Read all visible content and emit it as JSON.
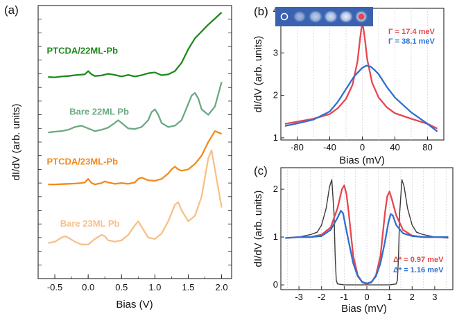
{
  "chart_data": [
    {
      "type": "line",
      "panel": "(a)",
      "xlabel": "Bias (V)",
      "ylabel": "dI/dV (arb. units)",
      "xlim": [
        -0.75,
        2.15
      ],
      "ylim": [
        0,
        1
      ],
      "xticks": [
        "-0.5",
        "0.0",
        "0.5",
        "1.0",
        "1.5",
        "2.0"
      ],
      "xtick_values": [
        -0.5,
        0.0,
        0.5,
        1.0,
        1.5,
        2.0
      ],
      "series": [
        {
          "name": "PTCDA/22ML-Pb",
          "color": "#1e8a1e",
          "label_x": -0.62,
          "label_y": 0.823,
          "x": [
            -0.6,
            -0.5,
            -0.4,
            -0.3,
            -0.2,
            -0.1,
            -0.05,
            0.0,
            0.05,
            0.1,
            0.2,
            0.3,
            0.4,
            0.5,
            0.6,
            0.7,
            0.8,
            0.9,
            1.0,
            1.1,
            1.2,
            1.3,
            1.4,
            1.5,
            1.6,
            1.7,
            1.8,
            1.9,
            2.0
          ],
          "y": [
            0.738,
            0.737,
            0.74,
            0.742,
            0.745,
            0.747,
            0.748,
            0.76,
            0.748,
            0.742,
            0.744,
            0.75,
            0.746,
            0.74,
            0.746,
            0.74,
            0.745,
            0.752,
            0.755,
            0.745,
            0.748,
            0.76,
            0.79,
            0.84,
            0.88,
            0.905,
            0.93,
            0.952,
            0.975
          ]
        },
        {
          "name": "Bare 22ML Pb",
          "color": "#6aa982",
          "label_x": -0.28,
          "label_y": 0.6,
          "x": [
            -0.6,
            -0.5,
            -0.4,
            -0.3,
            -0.2,
            -0.1,
            0.0,
            0.1,
            0.2,
            0.3,
            0.4,
            0.45,
            0.5,
            0.6,
            0.7,
            0.8,
            0.9,
            0.95,
            1.0,
            1.05,
            1.1,
            1.2,
            1.3,
            1.4,
            1.5,
            1.55,
            1.6,
            1.65,
            1.7,
            1.8,
            1.9,
            2.0
          ],
          "y": [
            0.535,
            0.538,
            0.54,
            0.545,
            0.555,
            0.56,
            0.55,
            0.54,
            0.545,
            0.553,
            0.57,
            0.58,
            0.57,
            0.55,
            0.548,
            0.555,
            0.58,
            0.61,
            0.62,
            0.6,
            0.57,
            0.555,
            0.56,
            0.58,
            0.64,
            0.67,
            0.68,
            0.66,
            0.62,
            0.6,
            0.63,
            0.72
          ]
        },
        {
          "name": "PTCDA/23ML-Pb",
          "color": "#f28a1c",
          "label_x": -0.62,
          "label_y": 0.418,
          "x": [
            -0.6,
            -0.5,
            -0.4,
            -0.3,
            -0.2,
            -0.1,
            -0.05,
            0.0,
            0.05,
            0.1,
            0.2,
            0.25,
            0.3,
            0.4,
            0.5,
            0.6,
            0.7,
            0.75,
            0.8,
            0.9,
            1.0,
            1.1,
            1.2,
            1.25,
            1.3,
            1.35,
            1.4,
            1.5,
            1.6,
            1.7,
            1.8,
            1.9,
            2.0
          ],
          "y": [
            0.345,
            0.345,
            0.346,
            0.347,
            0.348,
            0.35,
            0.352,
            0.365,
            0.35,
            0.345,
            0.35,
            0.356,
            0.352,
            0.347,
            0.35,
            0.347,
            0.352,
            0.365,
            0.37,
            0.36,
            0.358,
            0.365,
            0.385,
            0.4,
            0.41,
            0.4,
            0.395,
            0.4,
            0.42,
            0.45,
            0.5,
            0.54,
            0.53
          ]
        },
        {
          "name": "Bare 23ML Pb",
          "color": "#f7c088",
          "label_x": -0.42,
          "label_y": 0.19,
          "x": [
            -0.6,
            -0.5,
            -0.4,
            -0.35,
            -0.3,
            -0.2,
            -0.1,
            0.0,
            0.1,
            0.2,
            0.25,
            0.3,
            0.4,
            0.5,
            0.6,
            0.7,
            0.75,
            0.8,
            0.9,
            1.0,
            1.1,
            1.2,
            1.3,
            1.35,
            1.4,
            1.5,
            1.6,
            1.7,
            1.8,
            1.85,
            1.9,
            2.0
          ],
          "y": [
            0.13,
            0.135,
            0.15,
            0.155,
            0.15,
            0.135,
            0.125,
            0.125,
            0.145,
            0.16,
            0.155,
            0.14,
            0.135,
            0.14,
            0.16,
            0.195,
            0.21,
            0.19,
            0.15,
            0.145,
            0.165,
            0.21,
            0.27,
            0.28,
            0.25,
            0.21,
            0.23,
            0.3,
            0.44,
            0.47,
            0.4,
            0.26
          ]
        }
      ]
    },
    {
      "type": "line",
      "panel": "(b)",
      "xlabel": "Bias (mV)",
      "ylabel": "dI/dV (arb. units)",
      "xlim": [
        -100,
        100
      ],
      "ylim": [
        0.95,
        4.05
      ],
      "xticks": [
        -80,
        -40,
        0,
        40,
        80
      ],
      "yticks": [
        1,
        2,
        3,
        4
      ],
      "series": [
        {
          "name": "red",
          "color": "#e8454f",
          "x": [
            -95,
            -80,
            -60,
            -40,
            -30,
            -20,
            -12,
            -6,
            -3,
            0,
            3,
            6,
            12,
            20,
            30,
            40,
            60,
            80,
            92
          ],
          "y": [
            1.33,
            1.38,
            1.45,
            1.56,
            1.7,
            1.92,
            2.25,
            2.8,
            3.3,
            3.75,
            3.35,
            2.85,
            2.3,
            1.95,
            1.72,
            1.58,
            1.45,
            1.33,
            1.22
          ]
        },
        {
          "name": "blue",
          "color": "#2f6fd0",
          "x": [
            -95,
            -80,
            -60,
            -40,
            -30,
            -20,
            -10,
            0,
            5,
            10,
            15,
            20,
            30,
            40,
            60,
            80,
            92
          ],
          "y": [
            1.28,
            1.34,
            1.43,
            1.62,
            1.85,
            2.15,
            2.45,
            2.65,
            2.7,
            2.68,
            2.6,
            2.5,
            2.2,
            1.95,
            1.6,
            1.33,
            1.15
          ]
        }
      ],
      "annotations": [
        {
          "text": "Γ = 17.4 meV",
          "color": "#e8454f"
        },
        {
          "text": "Γ = 38.1 meV",
          "color": "#2f6fd0"
        }
      ],
      "inset": {
        "description": "image",
        "dots": [
          {
            "color": "#ffffff",
            "kind": "open"
          },
          {
            "color": "#e8454f",
            "kind": "filled"
          }
        ]
      }
    },
    {
      "type": "line",
      "panel": "(c)",
      "xlabel": "Bias (mV)",
      "ylabel": "dI/dV (arb. units)",
      "xlim": [
        -3.8,
        3.8
      ],
      "ylim": [
        -0.1,
        2.45
      ],
      "xticks": [
        -3,
        -2,
        -1,
        0,
        1,
        2,
        3
      ],
      "yticks": [
        0,
        1,
        2
      ],
      "series": [
        {
          "name": "gray",
          "color": "#3a3a3a",
          "x": [
            -3.6,
            -3.0,
            -2.5,
            -2.2,
            -2.0,
            -1.8,
            -1.65,
            -1.55,
            -1.45,
            -1.4,
            -1.35,
            -1.3,
            -1.0,
            0,
            1.0,
            1.3,
            1.35,
            1.4,
            1.45,
            1.55,
            1.65,
            1.8,
            2.0,
            2.2,
            2.5,
            3.0,
            3.6
          ],
          "y": [
            0.98,
            1.0,
            1.05,
            1.1,
            1.25,
            1.6,
            2.05,
            2.2,
            1.5,
            0.6,
            0.1,
            0.02,
            0.0,
            0.0,
            0.0,
            0.02,
            0.1,
            0.6,
            1.5,
            2.2,
            2.05,
            1.6,
            1.25,
            1.1,
            1.05,
            1.0,
            0.98
          ]
        },
        {
          "name": "red",
          "color": "#e8454f",
          "x": [
            -3.6,
            -3.0,
            -2.5,
            -2.0,
            -1.6,
            -1.3,
            -1.1,
            -1.0,
            -0.9,
            -0.8,
            -0.6,
            -0.4,
            -0.2,
            0,
            0.2,
            0.4,
            0.6,
            0.8,
            0.9,
            1.0,
            1.1,
            1.3,
            1.6,
            2.0,
            2.5,
            3.0,
            3.6
          ],
          "y": [
            0.98,
            1.0,
            1.0,
            1.05,
            1.2,
            1.6,
            2.0,
            2.08,
            1.9,
            1.5,
            0.6,
            0.2,
            0.05,
            0.02,
            0.05,
            0.2,
            0.6,
            1.5,
            1.85,
            1.95,
            1.8,
            1.45,
            1.15,
            1.03,
            1.0,
            1.0,
            1.0
          ]
        },
        {
          "name": "blue",
          "color": "#2f6fd0",
          "x": [
            -3.6,
            -3.0,
            -2.5,
            -2.0,
            -1.6,
            -1.3,
            -1.15,
            -1.05,
            -0.95,
            -0.8,
            -0.6,
            -0.4,
            -0.2,
            0,
            0.2,
            0.4,
            0.6,
            0.8,
            0.95,
            1.05,
            1.15,
            1.3,
            1.6,
            2.0,
            2.5,
            3.0,
            3.6
          ],
          "y": [
            0.98,
            1.0,
            1.0,
            1.02,
            1.15,
            1.4,
            1.55,
            1.5,
            1.25,
            0.9,
            0.45,
            0.18,
            0.06,
            0.03,
            0.06,
            0.18,
            0.45,
            0.9,
            1.3,
            1.48,
            1.45,
            1.25,
            1.08,
            1.02,
            1.0,
            1.0,
            1.0
          ]
        }
      ],
      "annotations": [
        {
          "text": "Δ* = 0.97 meV",
          "color": "#e8454f"
        },
        {
          "text": "Δ* = 1.16 meV",
          "color": "#2f6fd0"
        }
      ]
    }
  ]
}
